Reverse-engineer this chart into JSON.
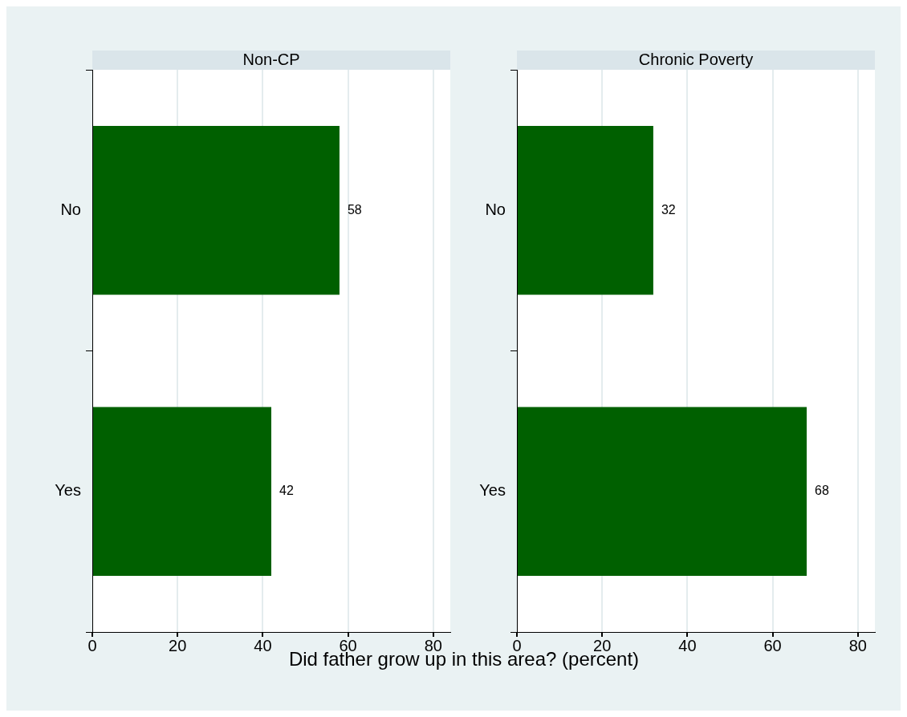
{
  "chart_data": [
    {
      "type": "bar",
      "orientation": "horizontal",
      "title": "Non-CP",
      "categories": [
        "No",
        "Yes"
      ],
      "values": [
        58,
        42
      ],
      "color": "#006000",
      "data_labels": true,
      "xlim": [
        0,
        84
      ],
      "xticks": [
        0,
        20,
        40,
        60,
        80
      ],
      "grid": "x",
      "xlabel": "Did father grow up in this area?  (percent)"
    },
    {
      "type": "bar",
      "orientation": "horizontal",
      "title": "Chronic Poverty",
      "categories": [
        "No",
        "Yes"
      ],
      "values": [
        32,
        68
      ],
      "color": "#006000",
      "data_labels": true,
      "xlim": [
        0,
        84
      ],
      "xticks": [
        0,
        20,
        40,
        60,
        80
      ],
      "grid": "x"
    }
  ]
}
